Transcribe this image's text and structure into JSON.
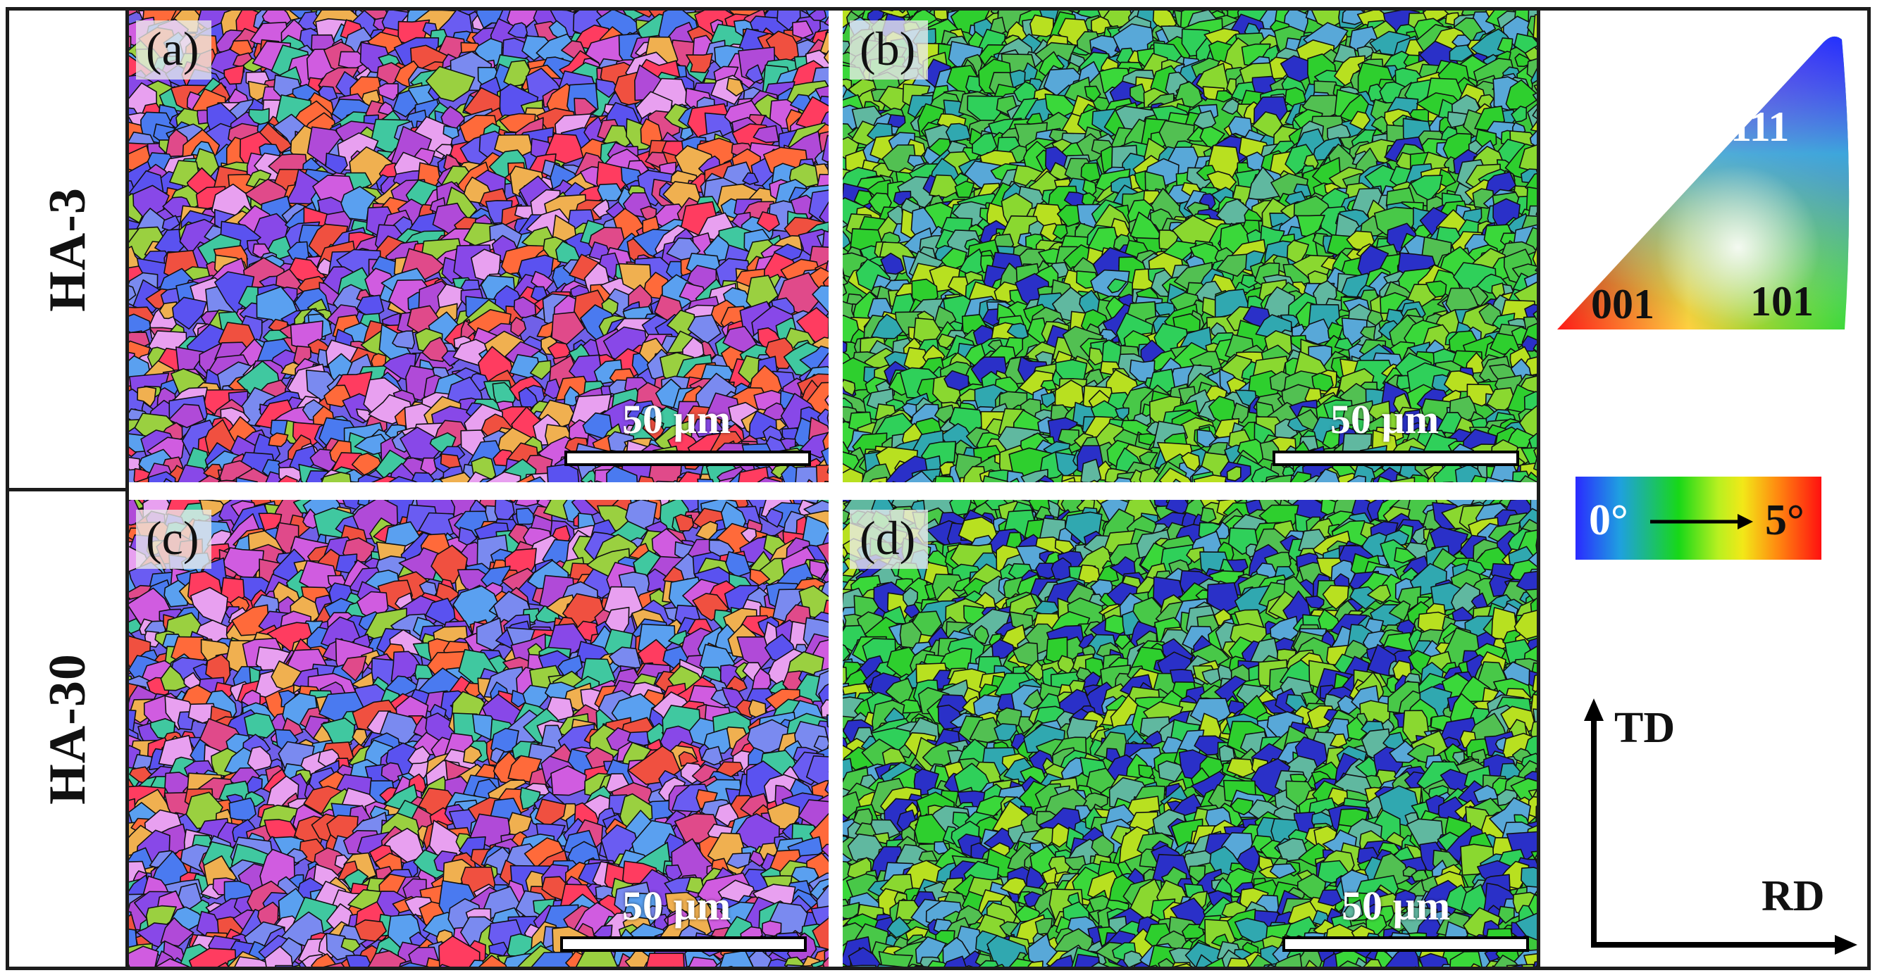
{
  "rows": [
    {
      "label": "HA-3"
    },
    {
      "label": "HA-30"
    }
  ],
  "panels": [
    {
      "label": "(a)",
      "scale_text": "50 µm",
      "map": "ipf",
      "seed": 11
    },
    {
      "label": "(b)",
      "scale_text": "50 µm",
      "map": "kam",
      "seed": 23
    },
    {
      "label": "(c)",
      "scale_text": "50 µm",
      "map": "ipf",
      "seed": 37
    },
    {
      "label": "(d)",
      "scale_text": "50 µm",
      "map": "kam",
      "seed": 53
    }
  ],
  "ipf_legend": {
    "corner_001": "001",
    "corner_101": "101",
    "corner_111": "111"
  },
  "kam_legend": {
    "min_label": "0°",
    "max_label": "5°",
    "colors": [
      "#2a2aff",
      "#1fa0e0",
      "#18d818",
      "#b8f020",
      "#f2e818",
      "#ff8a10",
      "#ff1010"
    ]
  },
  "axes": {
    "vertical_label": "TD",
    "horizontal_label": "RD"
  },
  "colors": {
    "ipf_palette": [
      "#5a52f0",
      "#6a5cf2",
      "#b04ad8",
      "#d05ce0",
      "#e04a8a",
      "#f05040",
      "#ff6a3a",
      "#7a8af0",
      "#4a7af0",
      "#e8a0f0",
      "#40c8a0",
      "#9ad040",
      "#f0b050",
      "#5aa0f0",
      "#8848e8",
      "#ff3c60"
    ],
    "kam_palette": [
      "#2ecf2e",
      "#3ad83a",
      "#52c052",
      "#60b8a0",
      "#58a8d8",
      "#48c848",
      "#8ad830",
      "#b8e020",
      "#30a8b0",
      "#2fd05a"
    ],
    "kam_blue": "#2a30c8"
  }
}
